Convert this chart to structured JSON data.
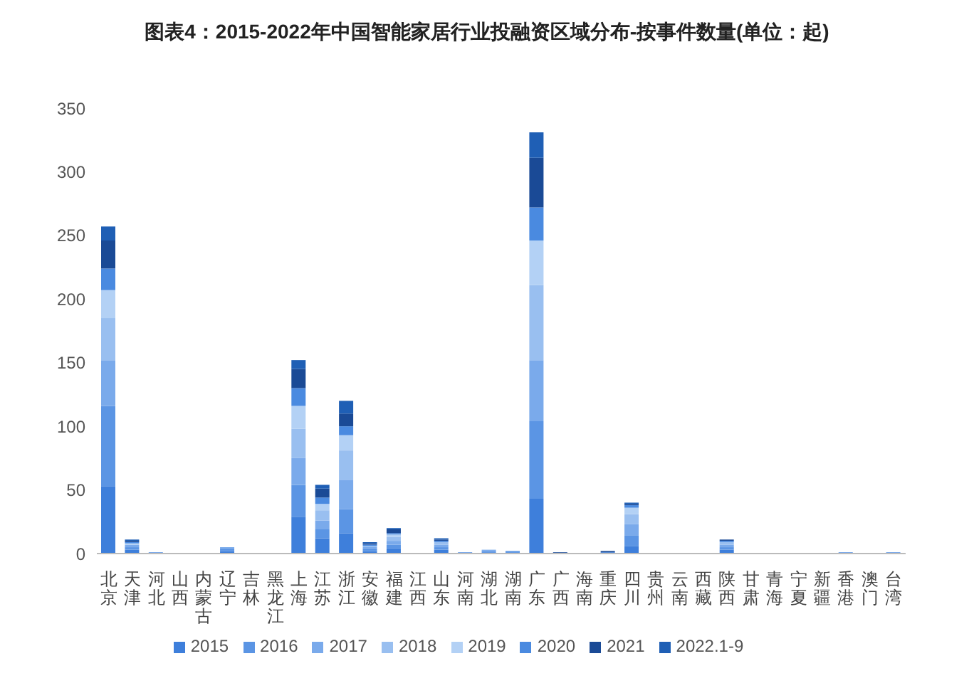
{
  "chart_data": {
    "type": "bar",
    "stacked": true,
    "title": "图表4：2015-2022年中国智能家居行业投融资区域分布-按事件数量(单位：起)",
    "categories": [
      "北京",
      "天津",
      "河北",
      "山西",
      "内蒙古",
      "辽宁",
      "吉林",
      "黑龙江",
      "上海",
      "江苏",
      "浙江",
      "安徽",
      "福建",
      "江西",
      "山东",
      "河南",
      "湖北",
      "湖南",
      "广东",
      "广西",
      "海南",
      "重庆",
      "四川",
      "贵州",
      "云南",
      "西藏",
      "陕西",
      "甘肃",
      "青海",
      "宁夏",
      "新疆",
      "香港",
      "澳门",
      "台湾"
    ],
    "series": [
      {
        "name": "2015",
        "color": "#3e7fdb",
        "values": [
          53,
          3,
          0,
          0,
          0,
          2,
          0,
          0,
          29,
          12,
          16,
          2,
          4,
          0,
          3,
          0,
          1,
          1,
          43,
          0,
          0,
          1,
          6,
          0,
          0,
          0,
          3,
          0,
          0,
          0,
          0,
          0,
          0,
          0
        ]
      },
      {
        "name": "2016",
        "color": "#5b95e4",
        "values": [
          63,
          2,
          1,
          0,
          0,
          2,
          0,
          0,
          25,
          7,
          19,
          2,
          3,
          0,
          2,
          1,
          1,
          1,
          61,
          0,
          0,
          0,
          8,
          0,
          0,
          0,
          2,
          0,
          0,
          0,
          0,
          1,
          0,
          1
        ]
      },
      {
        "name": "2017",
        "color": "#7aaaeb",
        "values": [
          36,
          2,
          0,
          0,
          0,
          1,
          0,
          0,
          21,
          7,
          23,
          1,
          3,
          0,
          2,
          0,
          1,
          0,
          48,
          0,
          0,
          0,
          9,
          0,
          0,
          0,
          2,
          0,
          0,
          0,
          0,
          0,
          0,
          0
        ]
      },
      {
        "name": "2018",
        "color": "#99bff0",
        "values": [
          33,
          null,
          0,
          0,
          0,
          0,
          0,
          0,
          23,
          8,
          23,
          1,
          3,
          0,
          2,
          0,
          0,
          0,
          59,
          0,
          0,
          0,
          8,
          0,
          0,
          0,
          2,
          0,
          0,
          0,
          0,
          0,
          0,
          0
        ]
      },
      {
        "name": "2019",
        "color": "#b3d1f5",
        "values": [
          22,
          1,
          0,
          0,
          0,
          0,
          0,
          0,
          18,
          5,
          12,
          null,
          2,
          0,
          null,
          0,
          0,
          0,
          35,
          0,
          0,
          0,
          5,
          0,
          0,
          0,
          null,
          0,
          0,
          0,
          0,
          0,
          0,
          0
        ]
      },
      {
        "name": "2020",
        "color": "#4a8ae0",
        "values": [
          17,
          1,
          0,
          0,
          0,
          0,
          0,
          0,
          14,
          5,
          7,
          1,
          1,
          0,
          1,
          0,
          0,
          0,
          26,
          0,
          0,
          0,
          2,
          0,
          0,
          0,
          1,
          0,
          0,
          0,
          0,
          0,
          0,
          0
        ]
      },
      {
        "name": "2021",
        "color": "#1a4a96",
        "values": [
          22,
          1,
          0,
          0,
          0,
          0,
          0,
          0,
          15,
          7,
          10,
          1,
          3,
          0,
          1,
          0,
          0,
          0,
          39,
          1,
          0,
          1,
          1,
          0,
          0,
          0,
          1,
          0,
          0,
          0,
          0,
          0,
          0,
          0
        ]
      },
      {
        "name": "2022.1-9",
        "color": "#1f5fb5",
        "values": [
          11,
          1,
          0,
          0,
          0,
          0,
          0,
          0,
          7,
          3,
          10,
          1,
          1,
          0,
          1,
          0,
          0,
          0,
          20,
          0,
          0,
          0,
          1,
          0,
          0,
          0,
          0,
          0,
          0,
          0,
          0,
          0,
          0,
          0
        ]
      }
    ],
    "ylim": [
      0,
      350
    ],
    "yticks": [
      0,
      50,
      100,
      150,
      200,
      250,
      300,
      350
    ],
    "grid": false,
    "legend": "bottom"
  }
}
